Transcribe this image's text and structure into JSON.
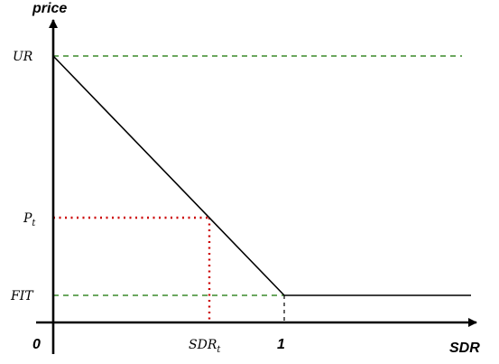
{
  "axes": {
    "y_label": "price",
    "x_label": "SDR",
    "origin_label": "0",
    "x_one_label": "1"
  },
  "levels": {
    "ur": "UR",
    "pt_main": "P",
    "pt_sub": "t",
    "fit": "FIT"
  },
  "x_marks": {
    "sdrt_main": "SDR",
    "sdrt_sub": "t"
  },
  "colors": {
    "axis": "#000000",
    "price_curve": "#000000",
    "reference_green": "#3a8a2a",
    "reference_red": "#cc0000",
    "guide_black": "#000000"
  }
}
